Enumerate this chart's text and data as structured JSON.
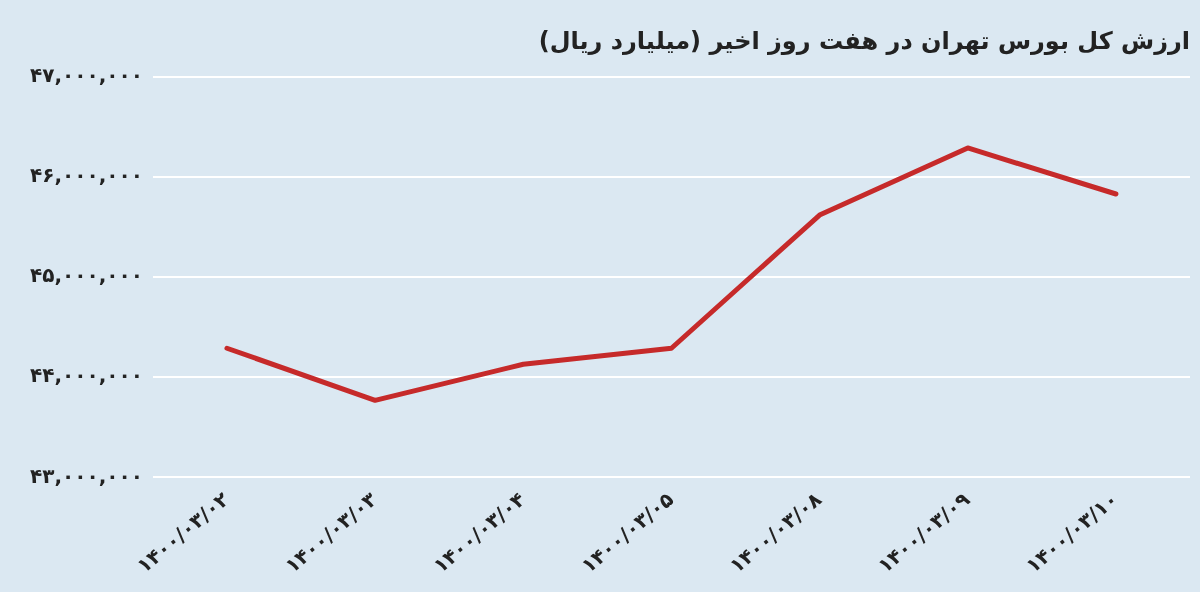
{
  "chart_data": {
    "type": "line",
    "title": "ارزش کل بورس تهران در هفت روز اخیر (میلیارد ریال)",
    "categories": [
      "۱۴۰۰/۰۳/۰۲",
      "۱۴۰۰/۰۳/۰۳",
      "۱۴۰۰/۰۳/۰۴",
      "۱۴۰۰/۰۳/۰۵",
      "۱۴۰۰/۰۳/۰۸",
      "۱۴۰۰/۰۳/۰۹",
      "۱۴۰۰/۰۳/۱۰"
    ],
    "series": [
      {
        "color": "#c62a2a",
        "values": [
          44290000,
          43770000,
          44130000,
          44290000,
          45620000,
          46290000,
          45830000
        ]
      }
    ],
    "ylim": [
      43000000,
      47000000
    ],
    "yticks": [
      {
        "value": 43000000,
        "label": "۴۳,۰۰۰,۰۰۰"
      },
      {
        "value": 44000000,
        "label": "۴۴,۰۰۰,۰۰۰"
      },
      {
        "value": 45000000,
        "label": "۴۵,۰۰۰,۰۰۰"
      },
      {
        "value": 46000000,
        "label": "۴۶,۰۰۰,۰۰۰"
      },
      {
        "value": 47000000,
        "label": "۴۷,۰۰۰,۰۰۰"
      }
    ],
    "grid": "y",
    "legend": false,
    "marker": "none",
    "line_style": "solid"
  }
}
